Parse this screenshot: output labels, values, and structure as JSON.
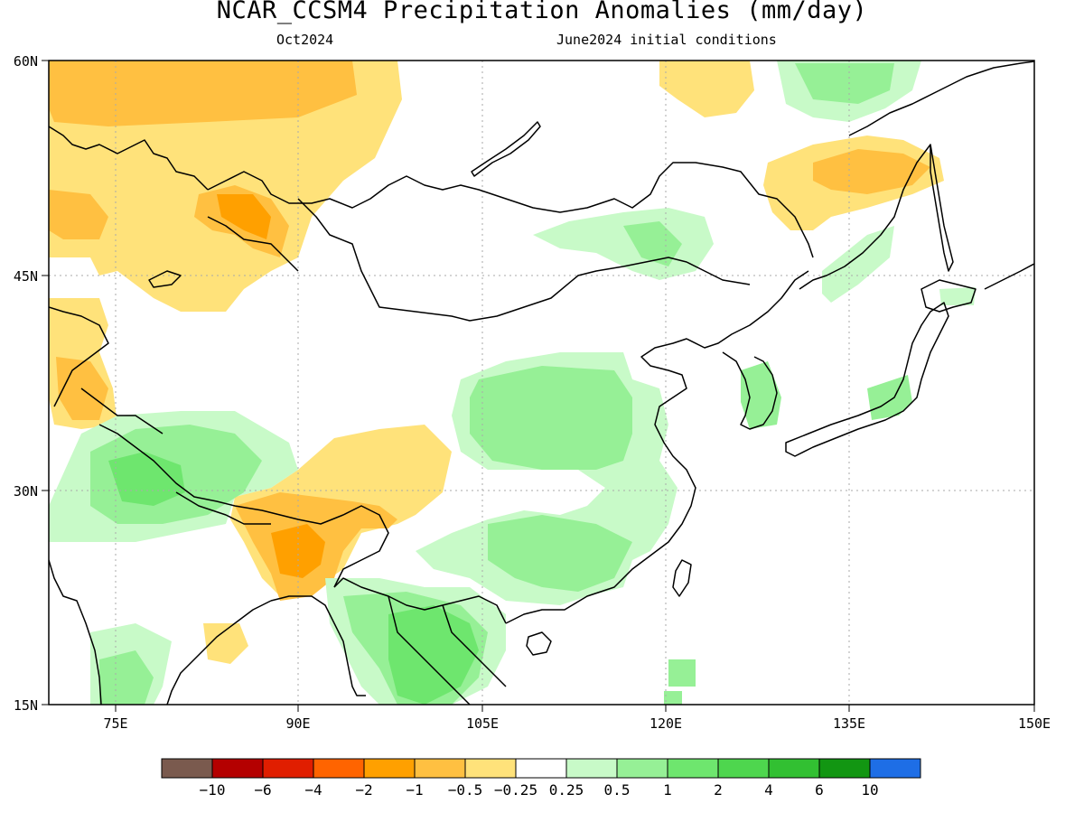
{
  "header": {
    "title": "NCAR_CCSM4 Precipitation Anomalies (mm/day)",
    "subtitle_left": "Oct2024",
    "subtitle_right": "June2024 initial conditions"
  },
  "axes": {
    "lat_ticks": [
      "60N",
      "45N",
      "30N",
      "15N"
    ],
    "lon_ticks": [
      "75E",
      "90E",
      "105E",
      "120E",
      "135E",
      "150E"
    ]
  },
  "legend": {
    "colors": [
      "#7a5a4e",
      "#b40000",
      "#e01e00",
      "#ff6400",
      "#ffa000",
      "#ffc041",
      "#ffe27a",
      "#ffffff",
      "#c8fac8",
      "#96f096",
      "#6ee66e",
      "#4ed64e",
      "#32c032",
      "#129612",
      "#1e6ee6"
    ],
    "labels": [
      "−10",
      "−6",
      "−4",
      "−2",
      "−1",
      "−0.5",
      "−0.25",
      "0.25",
      "0.5",
      "1",
      "2",
      "4",
      "6",
      "10"
    ]
  },
  "shade_colors": {
    "dry_light": "#ffe27a",
    "dry_mid": "#ffc041",
    "dry_strong": "#ffa000",
    "wet_light": "#c8fac8",
    "wet_mid": "#96f096",
    "wet_strong": "#6ee66e"
  }
}
